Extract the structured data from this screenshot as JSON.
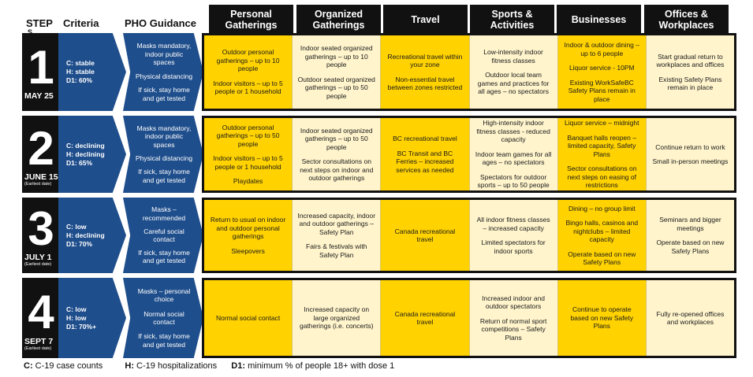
{
  "header": {
    "step": "STEP",
    "step_overflow": "S",
    "criteria": "Criteria",
    "pho": "PHO Guidance",
    "columns": [
      {
        "label": "Personal\nGatherings"
      },
      {
        "label": "Organized\nGatherings"
      },
      {
        "label": "Travel"
      },
      {
        "label": "Sports &\nActivities"
      },
      {
        "label": "Businesses"
      },
      {
        "label": "Offices &\nWorkplaces"
      }
    ]
  },
  "steps": [
    {
      "number": "1",
      "date": "MAY 25",
      "earliest": "",
      "criteria": [
        "C: stable",
        "H: stable",
        "D1: 60%"
      ],
      "pho": [
        "Masks mandatory, indoor public spaces",
        "Physical distancing",
        "If sick, stay home and get tested"
      ],
      "cells": [
        [
          "Outdoor personal gatherings – up to 10 people",
          "Indoor visitors – up to 5 people or 1 household"
        ],
        [
          "Indoor seated organized gatherings – up to 10 people",
          "Outdoor seated organized gatherings – up to 50 people"
        ],
        [
          "Recreational travel within your zone",
          "Non-essential travel between zones restricted"
        ],
        [
          "Low-intensity indoor fitness classes",
          "Outdoor local team games and practices for all ages – no spectators"
        ],
        [
          "Indoor & outdoor dining – up to 6 people",
          "Liquor service - 10PM",
          "Existing WorkSafeBC Safety Plans remain in place"
        ],
        [
          "Start gradual return to workplaces and offices",
          "Existing Safety Plans remain in place"
        ]
      ]
    },
    {
      "number": "2",
      "date": "JUNE 15",
      "earliest": "(Earliest date)",
      "criteria": [
        "C: declining",
        "H: declining",
        "D1: 65%"
      ],
      "pho": [
        "Masks mandatory, indoor public spaces",
        "Physical distancing",
        "If sick, stay home and get tested"
      ],
      "cells": [
        [
          "Outdoor personal gatherings – up to 50 people",
          "Indoor visitors – up to 5 people or 1 household",
          "Playdates"
        ],
        [
          "Indoor seated organized gatherings – up to 50 people",
          "Sector consultations on next steps on indoor and outdoor gatherings"
        ],
        [
          "BC recreational travel",
          "BC Transit and BC Ferries – increased services as needed"
        ],
        [
          "High-intensity indoor fitness classes - reduced capacity",
          "Indoor team games for all ages – no spectators",
          "Spectators for outdoor sports – up to 50 people"
        ],
        [
          "Liquor service – midnight",
          "Banquet halls reopen – limited capacity, Safety Plans",
          "Sector consultations on next steps on easing of restrictions"
        ],
        [
          "Continue return to work",
          "Small in-person meetings"
        ]
      ]
    },
    {
      "number": "3",
      "date": "JULY 1",
      "earliest": "(Earliest date)",
      "criteria": [
        "C: low",
        "H: declining",
        "D1: 70%"
      ],
      "pho": [
        "Masks – recommended",
        "Careful social contact",
        "If sick, stay home and get tested"
      ],
      "cells": [
        [
          "Return to usual on indoor and outdoor personal gatherings",
          "Sleepovers"
        ],
        [
          "Increased capacity, indoor and outdoor gatherings – Safety Plan",
          "Fairs & festivals with Safety Plan"
        ],
        [
          "Canada recreational travel"
        ],
        [
          "All indoor fitness classes – increased capacity",
          "Limited spectators for indoor sports"
        ],
        [
          "Dining – no group limit",
          "Bingo halls, casinos and nightclubs – limited capacity",
          "Operate based on new Safety Plans"
        ],
        [
          "Seminars and bigger meetings",
          "Operate based on new Safety Plans"
        ]
      ]
    },
    {
      "number": "4",
      "date": "SEPT 7",
      "earliest": "(Earliest date)",
      "criteria": [
        "C: low",
        "H: low",
        "D1: 70%+"
      ],
      "pho": [
        "Masks – personal choice",
        "Normal social contact",
        "If sick, stay home and get tested"
      ],
      "cells": [
        [
          "Normal social contact"
        ],
        [
          "Increased capacity on large organized gatherings (i.e. concerts)"
        ],
        [
          "Canada recreational travel"
        ],
        [
          "Increased indoor and outdoor spectators",
          "Return of normal sport competitions – Safety Plans"
        ],
        [
          "Continue to operate based on new Safety Plans"
        ],
        [
          "Fully re-opened offices and workplaces"
        ]
      ]
    }
  ],
  "legend": [
    {
      "key": "C:",
      "text": " C-19 case counts"
    },
    {
      "key": "H:",
      "text": " C-19 hospitalizations"
    },
    {
      "key": "D1:",
      "text": " minimum % of people 18+ with dose 1"
    }
  ],
  "colors": {
    "yellow": "#ffd200",
    "cream": "#fff4cc",
    "blue": "#1f4e8c",
    "black": "#111111"
  }
}
